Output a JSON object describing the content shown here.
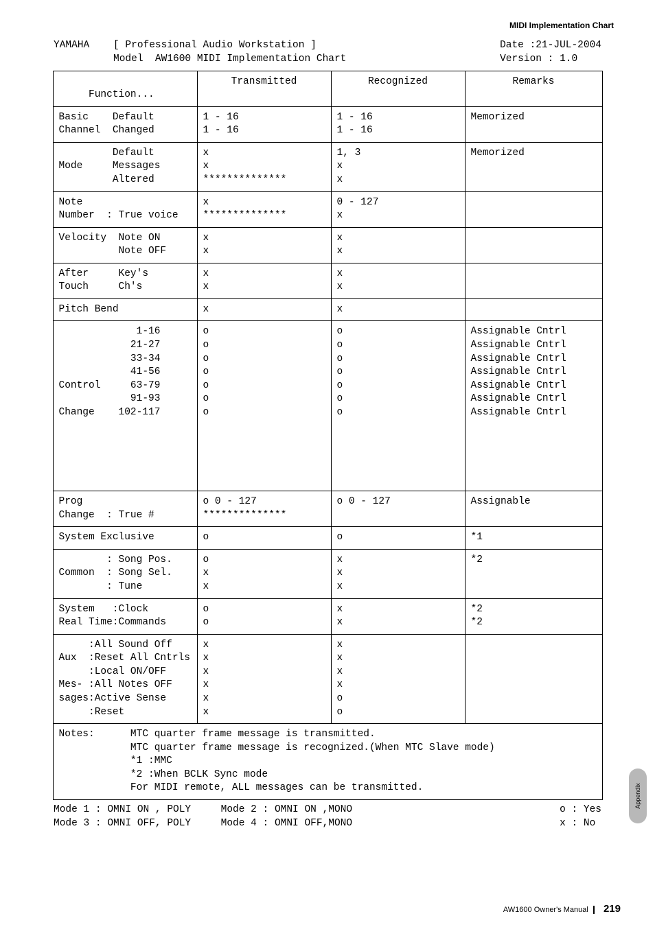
{
  "header": {
    "title": "MIDI Implementation Chart"
  },
  "topline": {
    "left": "YAMAHA    [ Professional Audio Workstation ]\n          Model  AW1600 MIDI Implementation Chart",
    "right": "Date :21-JUL-2004\nVersion : 1.0"
  },
  "columns": {
    "function": "\n     Function...",
    "transmitted": "Transmitted",
    "recognized": "Recognized",
    "remarks": "Remarks"
  },
  "rows": [
    {
      "func": "Basic    Default\nChannel  Changed",
      "tx": "1 - 16\n1 - 16",
      "rx": "1 - 16\n1 - 16",
      "rem": "Memorized"
    },
    {
      "func": "         Default\nMode     Messages\n         Altered",
      "tx": "x\nx\n**************",
      "rx": "1, 3\nx\nx",
      "rem": "Memorized"
    },
    {
      "func": "Note\nNumber  : True voice",
      "tx": "x\n**************",
      "rx": "0 - 127\nx",
      "rem": ""
    },
    {
      "func": "Velocity  Note ON\n          Note OFF",
      "tx": "x\nx",
      "rx": "x\nx",
      "rem": ""
    },
    {
      "func": "After     Key's\nTouch     Ch's",
      "tx": "x\nx",
      "rx": "x\nx",
      "rem": ""
    },
    {
      "func": "Pitch Bend",
      "tx": "x",
      "rx": "x",
      "rem": ""
    },
    {
      "func": "             1-16\n            21-27\n            33-34\n            41-56\nControl     63-79\n            91-93\nChange    102-117\n\n\n\n\n\n",
      "tx": "o\no\no\no\no\no\no",
      "rx": "o\no\no\no\no\no\no",
      "rem": "Assignable Cntrl\nAssignable Cntrl\nAssignable Cntrl\nAssignable Cntrl\nAssignable Cntrl\nAssignable Cntrl\nAssignable Cntrl"
    },
    {
      "func": "Prog\nChange  : True #",
      "tx": "o 0 - 127\n**************",
      "rx": "o 0 - 127",
      "rem": "Assignable"
    },
    {
      "func": "System Exclusive",
      "tx": "o",
      "rx": "o",
      "rem": "*1"
    },
    {
      "func": "        : Song Pos.\nCommon  : Song Sel.\n        : Tune",
      "tx": "o\nx\nx",
      "rx": "x\nx\nx",
      "rem": "*2"
    },
    {
      "func": "System   :Clock\nReal Time:Commands",
      "tx": "o\no",
      "rx": "x\nx",
      "rem": "*2\n*2"
    },
    {
      "func": "     :All Sound Off\nAux  :Reset All Cntrls\n     :Local ON/OFF\nMes- :All Notes OFF\nsages:Active Sense\n     :Reset",
      "tx": "x\nx\nx\nx\nx\nx",
      "rx": "x\nx\nx\nx\no\no",
      "rem": ""
    }
  ],
  "notes": "Notes:      MTC quarter frame message is transmitted.\n            MTC quarter frame message is recognized.(When MTC Slave mode)\n            *1 :MMC\n            *2 :When BCLK Sync mode\n            For MIDI remote, ALL messages can be transmitted.",
  "modes": {
    "left": "Mode 1 : OMNI ON , POLY     Mode 2 : OMNI ON ,MONO\nMode 3 : OMNI OFF, POLY     Mode 4 : OMNI OFF,MONO",
    "right": "o : Yes\nx : No"
  },
  "footer": {
    "manual": "AW1600  Owner's Manual",
    "page": "219"
  },
  "sidetab": "Appendix"
}
